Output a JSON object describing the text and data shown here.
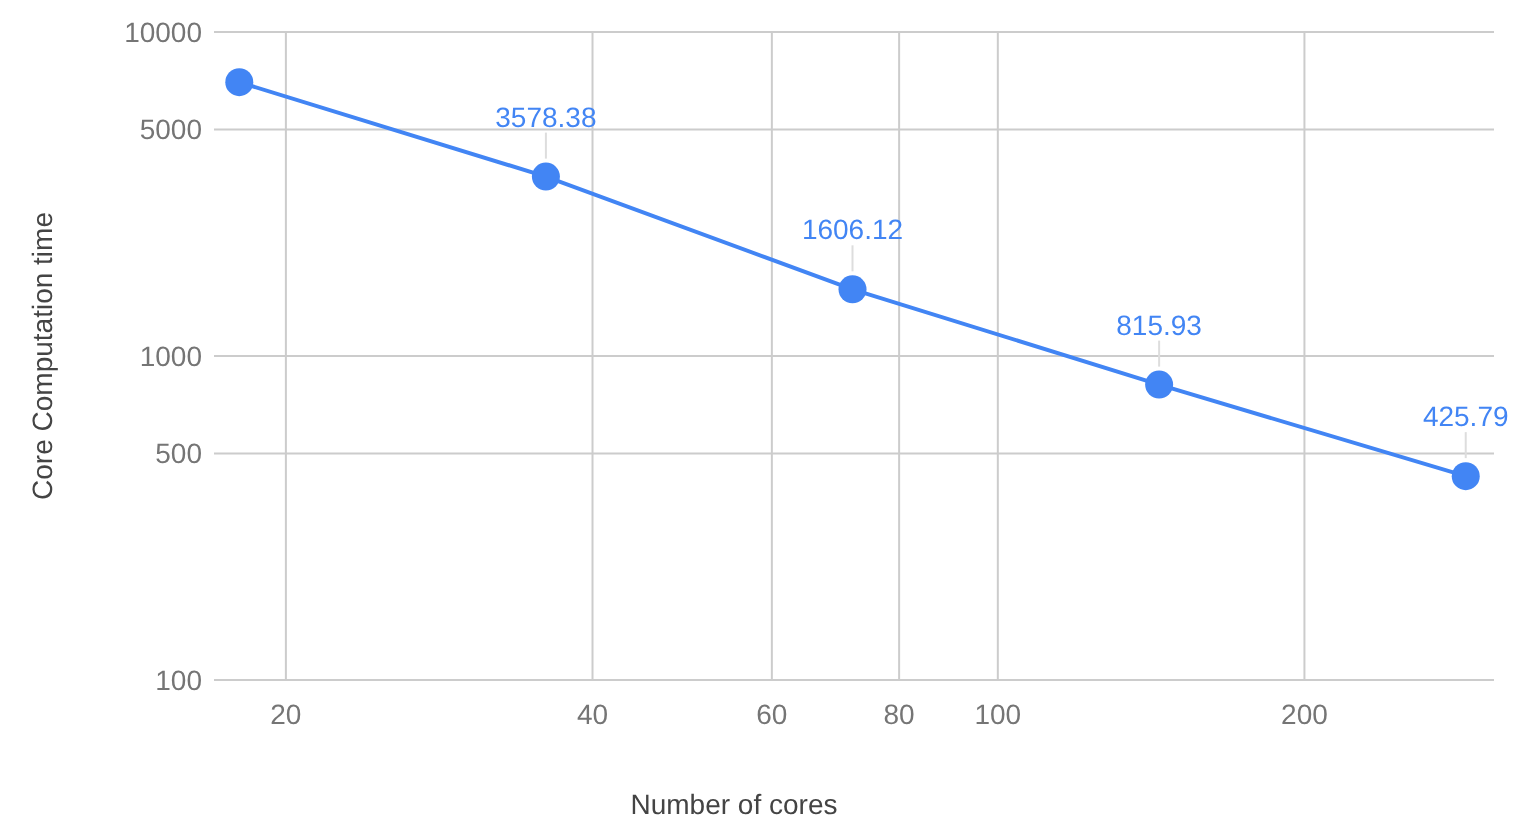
{
  "chart_data": {
    "type": "line",
    "xlabel": "Number of cores",
    "ylabel": "Core Computation time",
    "x": [
      18,
      36,
      72,
      144,
      288
    ],
    "series": [
      {
        "color": "#4285f4",
        "values": [
          7000,
          3578.38,
          1606.12,
          815.93,
          425.79
        ],
        "value_labels": [
          null,
          "3578.38",
          "1606.12",
          "815.93",
          "425.79"
        ]
      }
    ],
    "log": "xy",
    "xlim": [
      17,
      307
    ],
    "ylim": [
      100,
      10000
    ],
    "xticks": [
      20,
      40,
      60,
      80,
      100,
      200
    ],
    "yticks": [
      100,
      500,
      1000,
      5000,
      10000
    ],
    "grid": true,
    "marker": "circle",
    "line_style": "solid"
  }
}
